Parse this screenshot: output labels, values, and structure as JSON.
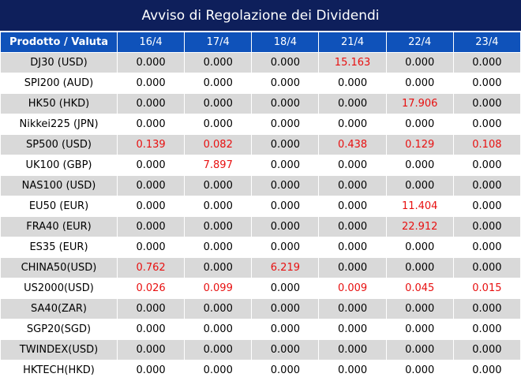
{
  "title": "Avviso di Regolazione dei Dividendi",
  "header": [
    "Prodotto / Valuta",
    "16/4",
    "17/4",
    "18/4",
    "21/4",
    "22/4",
    "23/4"
  ],
  "highlight_color": "#e81010",
  "rows": [
    {
      "product": "DJ30 (USD)",
      "values": [
        "0.000",
        "0.000",
        "0.000",
        "15.163",
        "0.000",
        "0.000"
      ]
    },
    {
      "product": "SPI200 (AUD)",
      "values": [
        "0.000",
        "0.000",
        "0.000",
        "0.000",
        "0.000",
        "0.000"
      ]
    },
    {
      "product": "HK50 (HKD)",
      "values": [
        "0.000",
        "0.000",
        "0.000",
        "0.000",
        "17.906",
        "0.000"
      ]
    },
    {
      "product": "Nikkei225 (JPN)",
      "values": [
        "0.000",
        "0.000",
        "0.000",
        "0.000",
        "0.000",
        "0.000"
      ]
    },
    {
      "product": "SP500 (USD)",
      "values": [
        "0.139",
        "0.082",
        "0.000",
        "0.438",
        "0.129",
        "0.108"
      ]
    },
    {
      "product": "UK100 (GBP)",
      "values": [
        "0.000",
        "7.897",
        "0.000",
        "0.000",
        "0.000",
        "0.000"
      ]
    },
    {
      "product": "NAS100 (USD)",
      "values": [
        "0.000",
        "0.000",
        "0.000",
        "0.000",
        "0.000",
        "0.000"
      ]
    },
    {
      "product": "EU50 (EUR)",
      "values": [
        "0.000",
        "0.000",
        "0.000",
        "0.000",
        "11.404",
        "0.000"
      ]
    },
    {
      "product": "FRA40 (EUR)",
      "values": [
        "0.000",
        "0.000",
        "0.000",
        "0.000",
        "22.912",
        "0.000"
      ]
    },
    {
      "product": "ES35 (EUR)",
      "values": [
        "0.000",
        "0.000",
        "0.000",
        "0.000",
        "0.000",
        "0.000"
      ]
    },
    {
      "product": "CHINA50(USD)",
      "values": [
        "0.762",
        "0.000",
        "6.219",
        "0.000",
        "0.000",
        "0.000"
      ]
    },
    {
      "product": "US2000(USD)",
      "values": [
        "0.026",
        "0.099",
        "0.000",
        "0.009",
        "0.045",
        "0.015"
      ]
    },
    {
      "product": "SA40(ZAR)",
      "values": [
        "0.000",
        "0.000",
        "0.000",
        "0.000",
        "0.000",
        "0.000"
      ]
    },
    {
      "product": "SGP20(SGD)",
      "values": [
        "0.000",
        "0.000",
        "0.000",
        "0.000",
        "0.000",
        "0.000"
      ]
    },
    {
      "product": "TWINDEX(USD)",
      "values": [
        "0.000",
        "0.000",
        "0.000",
        "0.000",
        "0.000",
        "0.000"
      ]
    },
    {
      "product": "HKTECH(HKD)",
      "values": [
        "0.000",
        "0.000",
        "0.000",
        "0.000",
        "0.000",
        "0.000"
      ]
    }
  ]
}
